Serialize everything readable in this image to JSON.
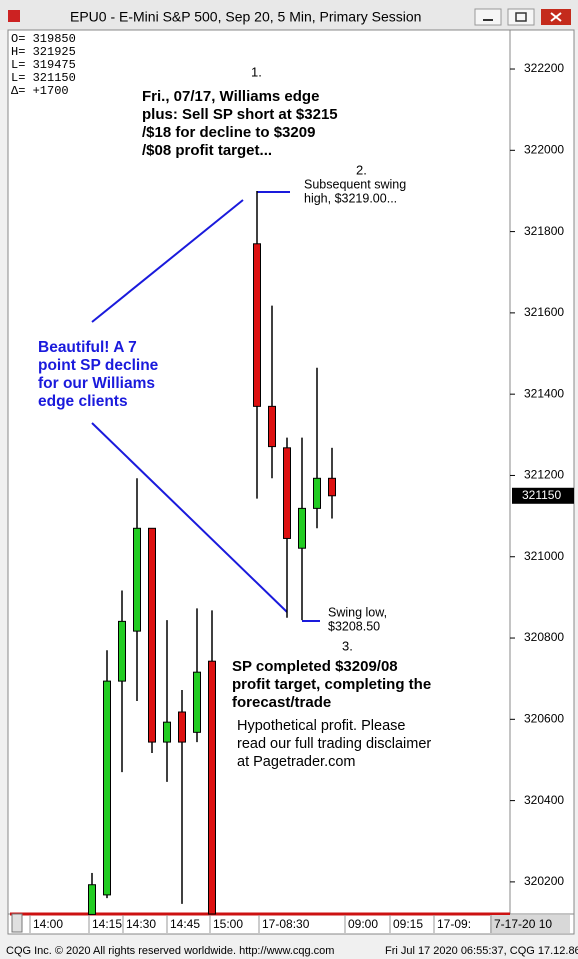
{
  "window_title": "EPU0 - E-Mini S&P 500, Sep 20, 5 Min, Primary Session",
  "info_box": [
    "O= 319850",
    "H= 321925",
    "L= 319475",
    "L= 321150",
    "Δ=  +1700"
  ],
  "chart_data": {
    "type": "candlestick",
    "open": [
      320120,
      320168,
      320694,
      320817,
      321070,
      320544,
      320618,
      320568,
      320743,
      321770,
      321370,
      321268,
      321021,
      321119,
      321193
    ],
    "high": [
      320222,
      320770,
      320917,
      321193,
      321070,
      320844,
      320672,
      320873,
      320868,
      321900,
      321618,
      321293,
      321293,
      321465,
      321268
    ],
    "low": [
      320121,
      320160,
      320470,
      320645,
      320517,
      320446,
      320146,
      320544,
      320121,
      321143,
      321193,
      320850,
      320844,
      321070,
      321094
    ],
    "close": [
      320193,
      320694,
      320841,
      321070,
      320544,
      320593,
      320544,
      320716,
      320121,
      321370,
      321271,
      321045,
      321119,
      321193,
      321150
    ],
    "up_color": "#22cc22",
    "down_color": "#dd1111",
    "ylim": [
      320121,
      322296
    ],
    "yticks": [
      320200,
      320400,
      320600,
      320800,
      321000,
      321200,
      321400,
      321600,
      321800,
      322000,
      322200
    ],
    "last_price": 321150,
    "time_labels": [
      "14:00",
      "14:15",
      "14:30",
      "14:45",
      "15:00",
      "17-08:30",
      "09:00",
      "09:15",
      "17-09:",
      "7-17-20 10"
    ],
    "annotations": {
      "marker_1": "1.",
      "main_note": [
        "Fri., 07/17, Williams edge",
        "plus: Sell SP short at $3215",
        "/$18 for decline to $3209",
        "/$08 profit target..."
      ],
      "marker_2": "2.",
      "swing_high": [
        "Subsequent swing",
        "high, $3219.00..."
      ],
      "blue_note": [
        "Beautiful! A 7",
        "point SP decline",
        "for our Williams",
        "edge clients"
      ],
      "swing_low": [
        "Swing low,",
        "$3208.50"
      ],
      "marker_3": "3.",
      "completed": [
        "SP completed $3209/08",
        "profit target, completing the",
        "forecast/trade"
      ],
      "disclaimer": [
        "Hypothetical profit.  Please",
        "read our full trading disclaimer",
        "at Pagetrader.com"
      ]
    }
  },
  "footer_left": "CQG Inc. © 2020 All rights reserved worldwide. http://www.cqg.com",
  "footer_right": "Fri Jul 17 2020 06:55:37, CQG 17.12.86"
}
